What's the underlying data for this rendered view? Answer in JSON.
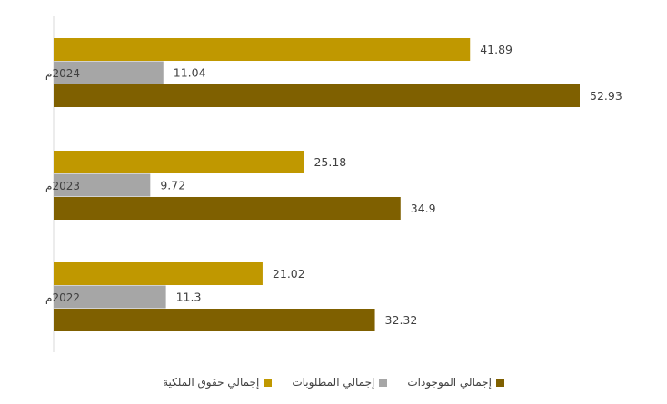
{
  "chart_data": {
    "type": "bar",
    "orientation": "horizontal",
    "categories": [
      "2024م",
      "2023م",
      "2022م"
    ],
    "series": [
      {
        "name": "إجمالي حقوق الملكية",
        "color": "#C09800",
        "values": [
          41.89,
          25.18,
          21.02
        ]
      },
      {
        "name": "إجمالي المطلوبات",
        "color": "#A6A6A6",
        "values": [
          11.04,
          9.72,
          11.3
        ]
      },
      {
        "name": "إجمالي الموجودات",
        "color": "#7F6000",
        "values": [
          52.93,
          34.9,
          32.32
        ]
      }
    ],
    "xlim": [
      0,
      60
    ],
    "legend_position": "bottom",
    "grid": false,
    "title": "",
    "xlabel": "",
    "ylabel": ""
  },
  "legend": {
    "items": [
      {
        "label": "إجمالي الموجودات",
        "color": "#7F6000"
      },
      {
        "label": "إجمالي المطلوبات",
        "color": "#A6A6A6"
      },
      {
        "label": "إجمالي حقوق الملكية",
        "color": "#C09800"
      }
    ]
  }
}
